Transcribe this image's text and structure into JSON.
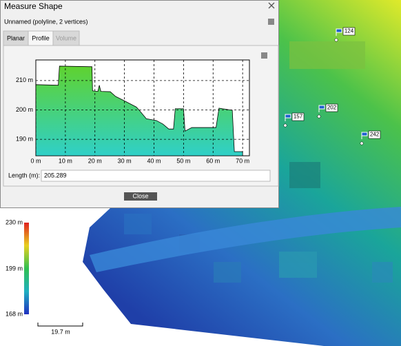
{
  "dialog": {
    "title": "Measure Shape",
    "subtitle": "Unnamed (polyline, 2 vertices)",
    "tabs": [
      "Planar",
      "Profile",
      "Volume"
    ],
    "length_label": "Length (m):",
    "length_value": "205.289",
    "close": "Close"
  },
  "chart_data": {
    "type": "area",
    "x": [
      0,
      7.6,
      8,
      19,
      19.2,
      21,
      21.5,
      22,
      25.2,
      27,
      29.4,
      31.7,
      34,
      35,
      37.4,
      40.8,
      43,
      45,
      46.6,
      47.2,
      50,
      50.5,
      52.8,
      61,
      62,
      66.5,
      67.2,
      70
    ],
    "values": [
      208.6,
      208.4,
      214.9,
      214.7,
      206.5,
      206.3,
      208.4,
      206.3,
      206.2,
      204.6,
      203.4,
      202.2,
      201,
      199.9,
      197,
      196.4,
      195.2,
      193.5,
      193.5,
      200.4,
      200.4,
      192.8,
      194,
      194,
      200.6,
      199.9,
      185.8,
      185.8
    ],
    "color": "#3fc83a",
    "xlim": [
      0,
      72.3
    ],
    "ylim": [
      184.4,
      217
    ],
    "xticks": [
      {
        "value": 0,
        "label": "0 m"
      },
      {
        "value": 10,
        "label": "10 m"
      },
      {
        "value": 20,
        "label": "20 m"
      },
      {
        "value": 30,
        "label": "30 m"
      },
      {
        "value": 40,
        "label": "40 m"
      },
      {
        "value": 50,
        "label": "50 m"
      },
      {
        "value": 60,
        "label": "60 m"
      },
      {
        "value": 70,
        "label": "70 m"
      }
    ],
    "yticks": [
      {
        "value": 190,
        "label": "190 m"
      },
      {
        "value": 200,
        "label": "200 m"
      },
      {
        "value": 210,
        "label": "210 m"
      }
    ],
    "grid": true
  },
  "map": {
    "markers": [
      "124",
      "157",
      "202",
      "242"
    ],
    "legend": [
      "230 m",
      "199 m",
      "168 m"
    ],
    "scale_bar": "19.7 m"
  }
}
